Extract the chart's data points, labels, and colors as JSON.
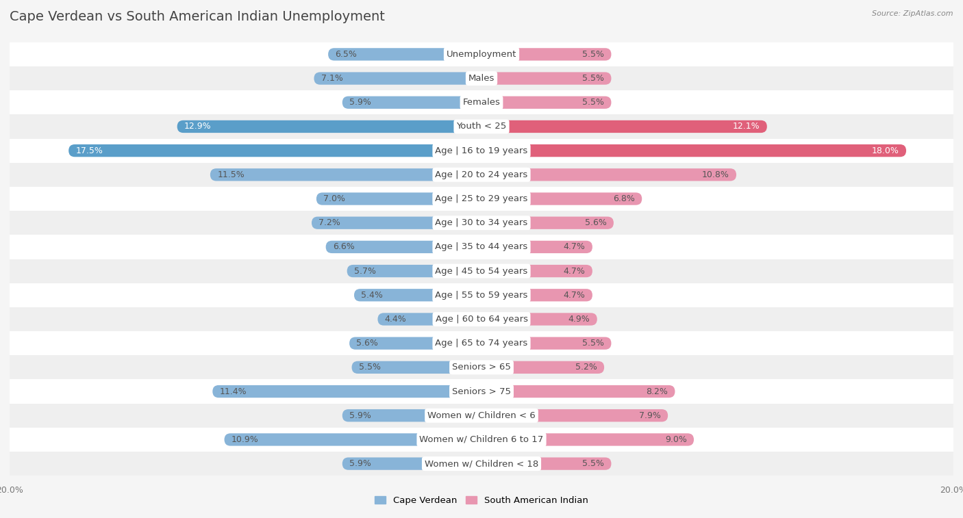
{
  "title": "Cape Verdean vs South American Indian Unemployment",
  "source": "Source: ZipAtlas.com",
  "categories": [
    "Unemployment",
    "Males",
    "Females",
    "Youth < 25",
    "Age | 16 to 19 years",
    "Age | 20 to 24 years",
    "Age | 25 to 29 years",
    "Age | 30 to 34 years",
    "Age | 35 to 44 years",
    "Age | 45 to 54 years",
    "Age | 55 to 59 years",
    "Age | 60 to 64 years",
    "Age | 65 to 74 years",
    "Seniors > 65",
    "Seniors > 75",
    "Women w/ Children < 6",
    "Women w/ Children 6 to 17",
    "Women w/ Children < 18"
  ],
  "cape_verdean": [
    6.5,
    7.1,
    5.9,
    12.9,
    17.5,
    11.5,
    7.0,
    7.2,
    6.6,
    5.7,
    5.4,
    4.4,
    5.6,
    5.5,
    11.4,
    5.9,
    10.9,
    5.9
  ],
  "south_american_indian": [
    5.5,
    5.5,
    5.5,
    12.1,
    18.0,
    10.8,
    6.8,
    5.6,
    4.7,
    4.7,
    4.7,
    4.9,
    5.5,
    5.2,
    8.2,
    7.9,
    9.0,
    5.5
  ],
  "cape_verdean_color": "#88b4d8",
  "south_american_indian_color": "#e896b0",
  "highlight_cape_verdean_color": "#5a9ec9",
  "highlight_south_american_indian_color": "#e0607a",
  "row_colors": [
    "#ffffff",
    "#efefef"
  ],
  "background_color": "#f5f5f5",
  "max_val": 20.0,
  "title_fontsize": 14,
  "label_fontsize": 9.5,
  "value_fontsize": 9,
  "tick_fontsize": 9,
  "highlight_rows": [
    3,
    4
  ]
}
